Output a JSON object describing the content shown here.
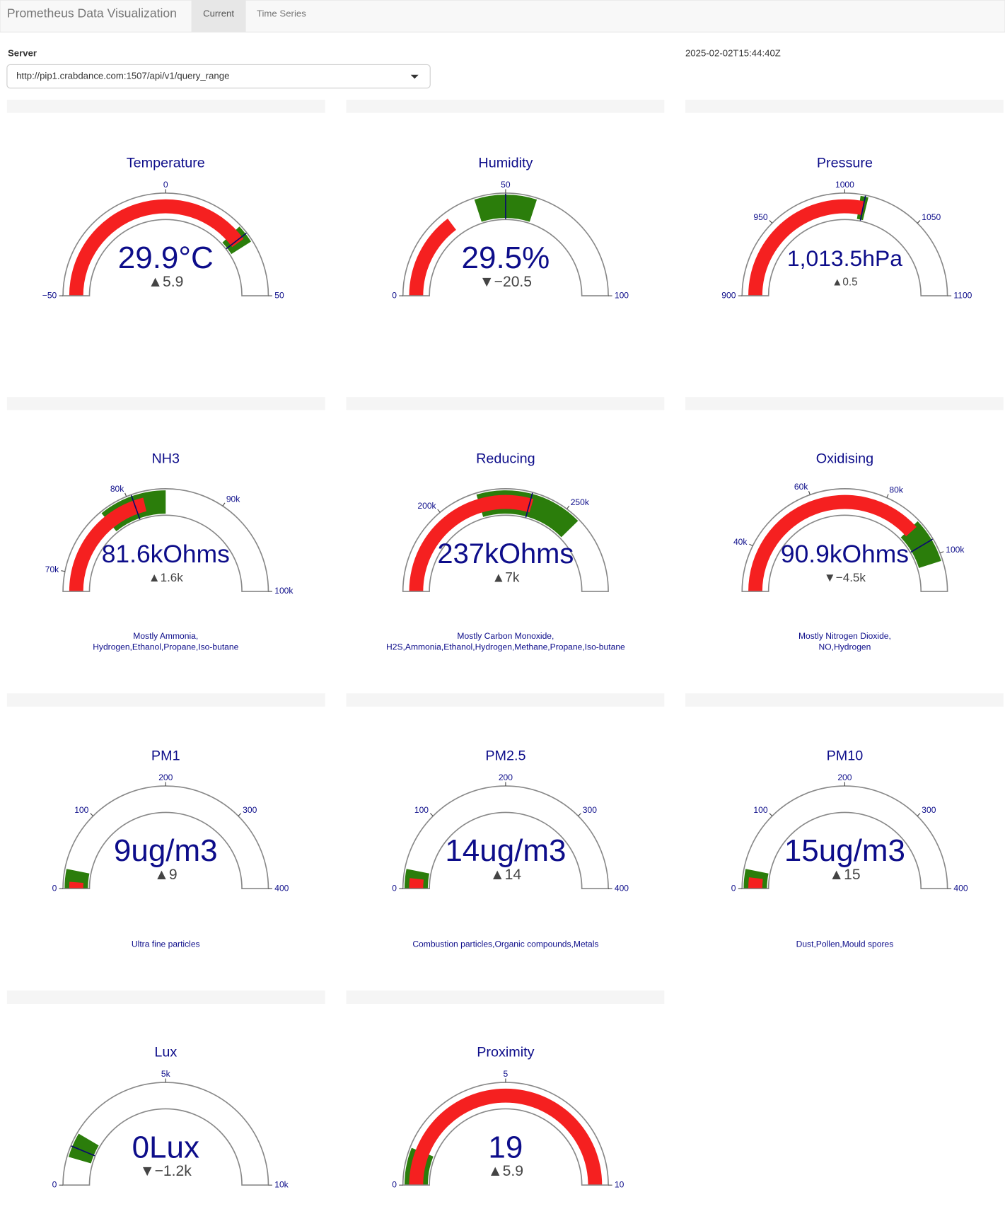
{
  "header": {
    "title": "Prometheus Data Visualization",
    "tabs": [
      "Current",
      "Time Series"
    ]
  },
  "server": {
    "label": "Server",
    "url": "http://pip1.crabdance.com:1507/api/v1/query_range"
  },
  "timestamp": "2025-02-02T15:44:40Z",
  "gauge_style": {
    "bar_color": "#f52020",
    "step_color": "#2b7d0b",
    "threshold_color": "#0a0a6e"
  },
  "gauges": [
    {
      "title": "Temperature",
      "value": 29.9,
      "value_label": "29.9°C",
      "delta_label": "▲5.9",
      "range": [
        -50,
        50
      ],
      "ticks": [
        {
          "value": -50,
          "label": "−50"
        },
        0,
        50
      ],
      "step": [
        26,
        32
      ],
      "threshold": 29
    },
    {
      "title": "Humidity",
      "value": 29.5,
      "value_label": "29.5%",
      "delta_label": "▼−20.5",
      "range": [
        0,
        100
      ],
      "ticks": [
        0,
        50,
        100
      ],
      "step": [
        40,
        60
      ],
      "threshold": 50
    },
    {
      "title": "Pressure",
      "value": 1013.5,
      "value_label": "1,013.5hPa",
      "delta_label": "▲0.5",
      "range": [
        900,
        1100
      ],
      "ticks": [
        900,
        950,
        1000,
        1050,
        1100
      ],
      "step": [
        1010,
        1015
      ],
      "threshold": 1013
    },
    {
      "title": "NH3",
      "value": 81600,
      "value_label": "81.6kOhms",
      "delta_label": "▲1.6k",
      "range": [
        68000,
        100000
      ],
      "ticks": [
        {
          "value": 70000,
          "label": "70k"
        },
        {
          "value": 80000,
          "label": "80k"
        },
        {
          "value": 90000,
          "label": "90k"
        },
        {
          "value": 100000,
          "label": "100k"
        }
      ],
      "step": [
        77000,
        84000
      ],
      "threshold": 80500,
      "description": [
        "Mostly Ammonia,",
        "Hydrogen,Ethanol,Propane,Iso-butane"
      ]
    },
    {
      "title": "Reducing",
      "value": 237000,
      "value_label": "237kOhms",
      "delta_label": "▲7k",
      "range": [
        167000,
        285000
      ],
      "ticks": [
        {
          "value": 200000,
          "label": "200k"
        },
        {
          "value": 250000,
          "label": "250k"
        }
      ],
      "step": [
        215000,
        256000
      ],
      "threshold": 236000,
      "description": [
        "Mostly Carbon Monoxide,",
        "H2S,Ammonia,Ethanol,Hydrogen,Methane,Propane,Iso-butane"
      ]
    },
    {
      "title": "Oxidising",
      "value": 90900,
      "value_label": "90.9kOhms",
      "delta_label": "▼−4.5k",
      "range": [
        28000,
        110000
      ],
      "ticks": [
        {
          "value": 40000,
          "label": "40k"
        },
        {
          "value": 60000,
          "label": "60k"
        },
        {
          "value": 80000,
          "label": "80k"
        },
        {
          "value": 100000,
          "label": "100k"
        }
      ],
      "step": [
        90000,
        102000
      ],
      "threshold": 96000,
      "description": [
        "Mostly Nitrogen Dioxide,",
        "NO,Hydrogen"
      ]
    },
    {
      "title": "PM1",
      "value": 9,
      "value_label": "9ug/m3",
      "delta_label": "▲9",
      "range": [
        0,
        400
      ],
      "ticks": [
        0,
        100,
        200,
        300,
        400
      ],
      "step": [
        0,
        25
      ],
      "description": [
        "Ultra fine particles"
      ]
    },
    {
      "title": "PM2.5",
      "value": 14,
      "value_label": "14ug/m3",
      "delta_label": "▲14",
      "range": [
        0,
        400
      ],
      "ticks": [
        0,
        100,
        200,
        300,
        400
      ],
      "step": [
        0,
        25
      ],
      "description": [
        "Combustion particles,Organic compounds,Metals"
      ]
    },
    {
      "title": "PM10",
      "value": 15,
      "value_label": "15ug/m3",
      "delta_label": "▲15",
      "range": [
        0,
        400
      ],
      "ticks": [
        0,
        100,
        200,
        300,
        400
      ],
      "step": [
        0,
        25
      ],
      "description": [
        "Dust,Pollen,Mould spores"
      ]
    },
    {
      "title": "Lux",
      "value": 0,
      "value_label": "0Lux",
      "delta_label": "▼−1.2k",
      "range": [
        0,
        10000
      ],
      "ticks": [
        0,
        {
          "value": 5000,
          "label": "5k"
        },
        {
          "value": 10000,
          "label": "10k"
        }
      ],
      "step": [
        900,
        1700
      ],
      "threshold": 1250
    },
    {
      "title": "Proximity",
      "value": 19,
      "value_label": "19",
      "delta_label": "▲5.9",
      "range": [
        0,
        10
      ],
      "ticks": [
        0,
        5,
        10
      ],
      "step": [
        0,
        1.2
      ]
    }
  ]
}
